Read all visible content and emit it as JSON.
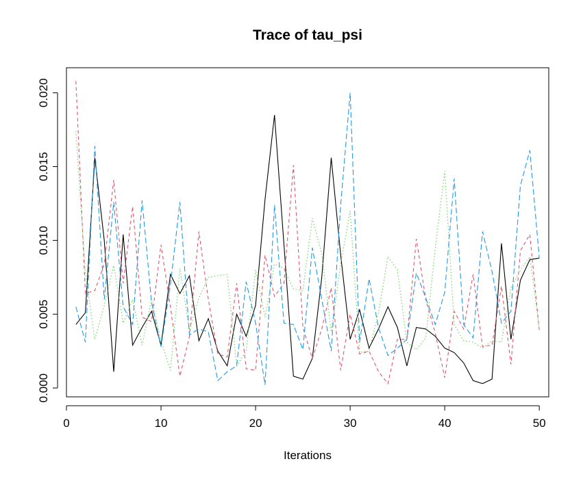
{
  "chart_data": {
    "type": "line",
    "title": "Trace of tau_psi",
    "xlabel": "Iterations",
    "ylabel": "",
    "xlim": [
      0,
      51
    ],
    "ylim": [
      -0.0006,
      0.0217
    ],
    "xticks": [
      0,
      10,
      20,
      30,
      40,
      50
    ],
    "xtick_labels": [
      "0",
      "10",
      "20",
      "30",
      "40",
      "50"
    ],
    "yticks": [
      0.0,
      0.005,
      0.01,
      0.015,
      0.02
    ],
    "ytick_labels": [
      "0.000",
      "0.005",
      "0.010",
      "0.015",
      "0.020"
    ],
    "grid": false,
    "legend": "none",
    "x": [
      1,
      2,
      3,
      4,
      5,
      6,
      7,
      8,
      9,
      10,
      11,
      12,
      13,
      14,
      15,
      16,
      17,
      18,
      19,
      20,
      21,
      22,
      23,
      24,
      25,
      26,
      27,
      28,
      29,
      30,
      31,
      32,
      33,
      34,
      35,
      36,
      37,
      38,
      39,
      40,
      41,
      42,
      43,
      44,
      45,
      46,
      47,
      48,
      49,
      50
    ],
    "series": [
      {
        "color": "#000000",
        "dash": "solid",
        "values": [
          0.0043,
          0.0051,
          0.0156,
          0.01,
          0.0011,
          0.0104,
          0.0029,
          0.0041,
          0.0052,
          0.0029,
          0.0077,
          0.0064,
          0.0076,
          0.0032,
          0.0047,
          0.0025,
          0.0015,
          0.005,
          0.0035,
          0.0056,
          0.0128,
          0.0185,
          0.0097,
          0.0008,
          0.0006,
          0.002,
          0.0075,
          0.0156,
          0.009,
          0.0033,
          0.0053,
          0.0027,
          0.004,
          0.0055,
          0.0041,
          0.0015,
          0.0041,
          0.004,
          0.0035,
          0.0027,
          0.0024,
          0.0017,
          0.0005,
          0.0003,
          0.0006,
          0.0098,
          0.0033,
          0.0073,
          0.0087,
          0.0088
        ]
      },
      {
        "color": "#DF536B",
        "dash": "dashed",
        "values": [
          0.0208,
          0.0064,
          0.0066,
          0.0084,
          0.0141,
          0.0071,
          0.0123,
          0.0048,
          0.0045,
          0.0097,
          0.0055,
          0.0008,
          0.0035,
          0.0106,
          0.006,
          0.0023,
          0.0021,
          0.0071,
          0.0013,
          0.0012,
          0.009,
          0.0062,
          0.0071,
          0.0151,
          0.0041,
          0.002,
          0.004,
          0.0068,
          0.0012,
          0.005,
          0.0023,
          0.0025,
          0.0011,
          0.0003,
          0.0033,
          0.0033,
          0.0101,
          0.006,
          0.0037,
          0.0007,
          0.0052,
          0.004,
          0.0077,
          0.0028,
          0.0029,
          0.0069,
          0.0016,
          0.0093,
          0.0104,
          0.0039
        ]
      },
      {
        "color": "#61D04F",
        "dash": "dotted",
        "values": [
          0.0174,
          0.0078,
          0.0033,
          0.0056,
          0.0083,
          0.0044,
          0.006,
          0.0029,
          0.006,
          0.0032,
          0.0012,
          0.0081,
          0.0039,
          0.0061,
          0.0075,
          0.0076,
          0.0077,
          0.0015,
          0.0025,
          0.008,
          0.0048,
          0.0084,
          0.0081,
          0.0067,
          0.0066,
          0.0115,
          0.0091,
          0.0038,
          0.0084,
          0.012,
          0.0024,
          0.0025,
          0.0051,
          0.0089,
          0.008,
          0.0031,
          0.0026,
          0.0034,
          0.0095,
          0.0147,
          0.0043,
          0.0032,
          0.0031,
          0.0027,
          0.0032,
          0.0031,
          0.0068,
          0.008,
          0.0089,
          0.004
        ]
      },
      {
        "color": "#2297E6",
        "dash": "longdash",
        "values": [
          0.0055,
          0.0031,
          0.0164,
          0.006,
          0.0126,
          0.0055,
          0.0043,
          0.0127,
          0.0058,
          0.0028,
          0.007,
          0.0126,
          0.0036,
          0.004,
          0.0038,
          0.0005,
          0.0011,
          0.0015,
          0.0072,
          0.0044,
          0.0002,
          0.0124,
          0.0044,
          0.0043,
          0.0026,
          0.0095,
          0.006,
          0.0025,
          0.0124,
          0.02,
          0.0031,
          0.0074,
          0.0041,
          0.0022,
          0.0027,
          0.0033,
          0.0078,
          0.0061,
          0.0043,
          0.0065,
          0.0142,
          0.0043,
          0.0034,
          0.0106,
          0.0079,
          0.0044,
          0.0052,
          0.0137,
          0.0161,
          0.0088
        ]
      }
    ]
  }
}
